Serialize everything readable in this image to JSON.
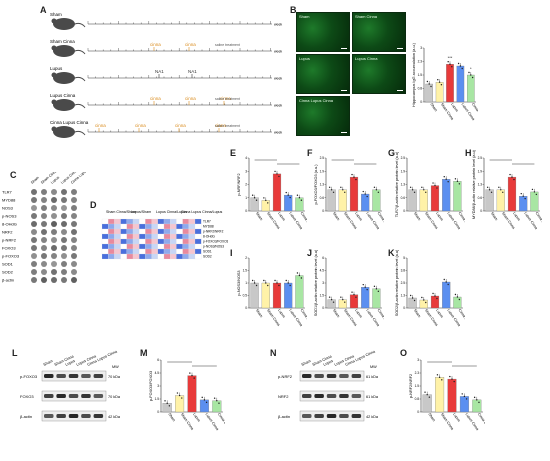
{
  "panels": {
    "A": "A",
    "B": "B",
    "C": "C",
    "D": "D",
    "E": "E",
    "F": "F",
    "G": "G",
    "H": "H",
    "I": "I",
    "J": "J",
    "K": "K",
    "L": "L",
    "M": "M",
    "N": "N",
    "O": "O"
  },
  "timeline": {
    "day_label": "week",
    "rows": [
      {
        "name": "Sham",
        "marks": []
      },
      {
        "name": "Sham Cinna",
        "marks": [
          "cinna",
          "cinna"
        ],
        "treat": "saline treatment"
      },
      {
        "name": "Lupus",
        "marks": [
          "NA1",
          "NA1"
        ],
        "treat": ""
      },
      {
        "name": "Lupus Cinna",
        "marks": [
          "cinna",
          "cinna",
          "cinna"
        ],
        "treat": "saline treatment"
      },
      {
        "name": "Cinna Lupus Cinna",
        "marks": [
          "cinna",
          "cinna",
          "cinna",
          "cinna"
        ],
        "treat": "saline treatment"
      }
    ]
  },
  "fluor_images": [
    "Sham",
    "Sham Cinna",
    "Lupus",
    "Lupus Cinna",
    "Cinna Lupus Cinna"
  ],
  "groups": [
    "Sham",
    "Sham Cinna",
    "Lupus",
    "Lupus Cinna",
    "Cinna Lupus Cinna"
  ],
  "colors": {
    "Sham": "#c8c8c8",
    "Sham Cinna": "#fff2a8",
    "Lupus": "#e83a3a",
    "Lupus Cinna": "#5b8ff0",
    "Cinna Lupus Cinna": "#a8e6a3"
  },
  "array": {
    "proteins": [
      "TLR7",
      "MYD88",
      "NOS3",
      "p-NOS3",
      "8-OHdG",
      "NRF2",
      "p-NRF2",
      "FOXO3",
      "p-FOXO3",
      "SOD1",
      "SOD2",
      "β-actin"
    ],
    "columns": [
      "Sham",
      "Sham Cinna",
      "Lupus",
      "Lupus Cinna",
      "Cinna Lupus Cinna"
    ]
  },
  "heatmap": {
    "col_groups": [
      "Sham Cinna/Sham",
      "Lupus/Sham",
      "Lupus Cinna/Lupus",
      "Cinna Lupus Cinna/Lupus"
    ],
    "rows": [
      "TLR7",
      "MYD88",
      "p-NRF2/NRF2",
      "8-OHdG",
      "p-FOXO3/FOXO3",
      "p-NOS3/NOS3",
      "SOD1",
      "SOD2"
    ]
  },
  "western_L": {
    "bands": [
      "p-FOXO3",
      "FOXO3",
      "β-actin"
    ],
    "mw": [
      "70 kDa",
      "70 kDa",
      "42 kDa"
    ],
    "mw_header": "MW"
  },
  "western_N": {
    "bands": [
      "p-NRF2",
      "NRF2",
      "β-actin"
    ],
    "mw": [
      "61 kDa",
      "61 kDa",
      "42 kDa"
    ],
    "mw_header": "MW"
  },
  "chart_data": [
    {
      "panel": "B",
      "type": "bar",
      "categories": [
        "Sham",
        "Sham Cinna",
        "Lupus",
        "Lupus Cinna",
        "Cinna Lupus Cinna"
      ],
      "values": [
        1.0,
        1.1,
        2.1,
        2.0,
        1.5
      ],
      "ylabel": "Hippocampus IgG accumulation (a.u.)",
      "ylim": [
        0,
        3
      ],
      "significance": [
        "",
        "",
        "***",
        "",
        "*"
      ]
    },
    {
      "panel": "E",
      "type": "bar",
      "categories": [
        "Sham",
        "Sham Cinna",
        "Lupus",
        "Lupus Cinna",
        "Cinna Lupus Cinna"
      ],
      "values": [
        1.0,
        0.8,
        2.8,
        1.2,
        1.0
      ],
      "ylabel": "p-NRF/NRF2",
      "ylim": [
        0,
        4
      ]
    },
    {
      "panel": "F",
      "type": "bar",
      "categories": [
        "Sham",
        "Sham Cinna",
        "Lupus",
        "Lupus Cinna",
        "Cinna Lupus Cinna"
      ],
      "values": [
        1.0,
        1.0,
        1.6,
        0.8,
        1.0
      ],
      "ylabel": "p-FOXO3/FOXO3 (a.u.)",
      "ylim": [
        0,
        2.5
      ]
    },
    {
      "panel": "G",
      "type": "bar",
      "categories": [
        "Sham",
        "Sham Cinna",
        "Lupus",
        "Lupus Cinna",
        "Cinna Lupus Cinna"
      ],
      "values": [
        1.0,
        1.0,
        1.2,
        1.5,
        1.4
      ],
      "ylabel": "TLR7/β-actin relative protein level (a.u)",
      "ylim": [
        0,
        2.5
      ]
    },
    {
      "panel": "H",
      "type": "bar",
      "categories": [
        "Sham",
        "Sham Cinna",
        "Lupus",
        "Lupus Cinna",
        "Cinna Lupus Cinna"
      ],
      "values": [
        1.0,
        1.0,
        1.6,
        0.7,
        0.9
      ],
      "ylabel": "MYD88/β-actin relative protein level (a.u)",
      "ylim": [
        0,
        2.5
      ]
    },
    {
      "panel": "I",
      "type": "bar",
      "categories": [
        "Sham",
        "Sham Cinna",
        "Lupus",
        "Lupus Cinna",
        "Cinna Lupus Cinna"
      ],
      "values": [
        1.0,
        1.0,
        1.0,
        1.0,
        1.3
      ],
      "ylabel": "p-NOS3/NOS3",
      "ylim": [
        0,
        2
      ]
    },
    {
      "panel": "J",
      "type": "bar",
      "categories": [
        "Sham",
        "Sham Cinna",
        "Lupus",
        "Lupus Cinna",
        "Cinna Lupus Cinna"
      ],
      "values": [
        1.0,
        1.0,
        1.6,
        2.5,
        2.3
      ],
      "ylabel": "SOD1/β-actin relative protein level (a.u)",
      "ylim": [
        0,
        6
      ]
    },
    {
      "panel": "K",
      "type": "bar",
      "categories": [
        "Sham",
        "Sham Cinna",
        "Lupus",
        "Lupus Cinna",
        "Cinna Lupus Cinna"
      ],
      "values": [
        1.0,
        0.8,
        1.2,
        2.6,
        1.1
      ],
      "ylabel": "SOD2/β-actin relative protein level (a.u)",
      "ylim": [
        0,
        5
      ]
    },
    {
      "panel": "M",
      "type": "bar",
      "categories": [
        "Sham",
        "Sham Cinna",
        "Lupus",
        "Lupus Cinna",
        "Cinna Lupus Cinna"
      ],
      "values": [
        1.0,
        1.9,
        4.2,
        1.4,
        1.3
      ],
      "ylabel": "p-FOXO3/FOXO3",
      "ylim": [
        0,
        6
      ]
    },
    {
      "panel": "O",
      "type": "bar",
      "categories": [
        "Sham",
        "Sham Cinna",
        "Lupus",
        "Lupus Cinna",
        "Cinna Lupus Cinna"
      ],
      "values": [
        1.0,
        2.0,
        1.9,
        0.9,
        0.7
      ],
      "ylabel": "p-NRF2/NRF2",
      "ylim": [
        0,
        3
      ]
    }
  ]
}
